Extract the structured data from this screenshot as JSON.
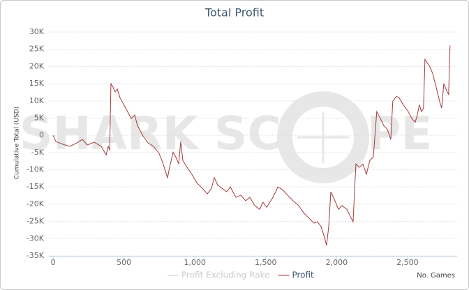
{
  "chart_data": {
    "type": "line",
    "title": "Total Profit",
    "ylabel": "Cumulative Total (USD)",
    "xlabel": "No. Games",
    "watermark": [
      "SHARK SC",
      "PE"
    ],
    "hidden_series": [
      {
        "name": "Profit Excluding Rake",
        "color": "#cccccc"
      }
    ],
    "x": [
      0,
      20,
      69,
      118,
      167,
      207,
      241,
      290,
      340,
      374,
      389,
      399,
      408,
      423,
      438,
      453,
      472,
      512,
      551,
      576,
      595,
      635,
      669,
      709,
      748,
      773,
      807,
      822,
      846,
      866,
      886,
      900,
      915,
      945,
      979,
      1014,
      1053,
      1088,
      1117,
      1137,
      1161,
      1191,
      1225,
      1250,
      1289,
      1324,
      1358,
      1388,
      1422,
      1457,
      1481,
      1506,
      1545,
      1570,
      1585,
      1619,
      1654,
      1693,
      1732,
      1767,
      1801,
      1841,
      1865,
      1890,
      1914,
      1929,
      1944,
      1959,
      1988,
      2013,
      2037,
      2072,
      2101,
      2116,
      2131,
      2136,
      2160,
      2185,
      2210,
      2234,
      2259,
      2283,
      2308,
      2333,
      2357,
      2382,
      2396,
      2421,
      2441,
      2470,
      2505,
      2530,
      2554,
      2569,
      2584,
      2598,
      2613,
      2623,
      2638,
      2657,
      2677,
      2702,
      2726,
      2741,
      2756,
      2776,
      2790,
      2800
    ],
    "series": [
      {
        "name": "Profit",
        "color": "#a33a3a",
        "values": [
          0,
          -1800,
          -2600,
          -3200,
          -2200,
          -1200,
          -2800,
          -2000,
          -3200,
          -5700,
          -3200,
          -4300,
          15000,
          14000,
          12600,
          13400,
          10900,
          7900,
          4900,
          5900,
          2800,
          -200,
          -2200,
          -3200,
          -5300,
          -7900,
          -12300,
          -9300,
          -4900,
          -6300,
          -8300,
          -1800,
          -7300,
          -9300,
          -11300,
          -13800,
          -15400,
          -17000,
          -15400,
          -12300,
          -14400,
          -15400,
          -16400,
          -15000,
          -18000,
          -17400,
          -19000,
          -18000,
          -20400,
          -21500,
          -19400,
          -20900,
          -18400,
          -16400,
          -15000,
          -15800,
          -17400,
          -19000,
          -20400,
          -22500,
          -23900,
          -25500,
          -25100,
          -26500,
          -29600,
          -32000,
          -26500,
          -16400,
          -19000,
          -21500,
          -20400,
          -21500,
          -23900,
          -25100,
          -12300,
          -8300,
          -9300,
          -8300,
          -11300,
          -7300,
          -6300,
          6900,
          4900,
          2800,
          1800,
          -1200,
          9900,
          11300,
          10900,
          8900,
          6900,
          4900,
          3800,
          5900,
          8900,
          6900,
          7900,
          22100,
          21100,
          20000,
          18000,
          14000,
          9900,
          7900,
          15000,
          13000,
          11900,
          26100
        ]
      }
    ],
    "xlim": [
      -30,
      2850
    ],
    "ylim": [
      -35000,
      30000
    ],
    "xticks": [
      0,
      500,
      {
        "value": 1000,
        "label": "1,000"
      },
      {
        "value": 1500,
        "label": "1,500"
      },
      {
        "value": 2000,
        "label": "2,000"
      },
      {
        "value": 2500,
        "label": "2,500"
      }
    ],
    "yticks": [
      {
        "value": -35000,
        "label": "-35K"
      },
      {
        "value": -30000,
        "label": "-30K"
      },
      {
        "value": -25000,
        "label": "-25K"
      },
      {
        "value": -20000,
        "label": "-20K"
      },
      {
        "value": -15000,
        "label": "-15K"
      },
      {
        "value": -10000,
        "label": "-10K"
      },
      {
        "value": -5000,
        "label": "-5K"
      },
      0,
      {
        "value": 5000,
        "label": "5K"
      },
      {
        "value": 10000,
        "label": "10K"
      },
      {
        "value": 15000,
        "label": "15K"
      },
      {
        "value": 20000,
        "label": "20K"
      },
      {
        "value": 25000,
        "label": "25K"
      },
      {
        "value": 30000,
        "label": "30K"
      }
    ],
    "grid": true
  }
}
